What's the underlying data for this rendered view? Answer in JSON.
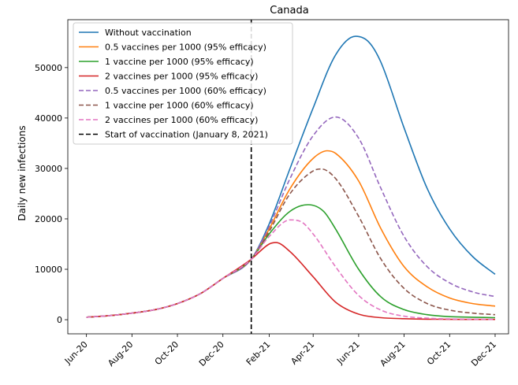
{
  "chart_data": {
    "type": "line",
    "title": "Canada",
    "xlabel": "",
    "ylabel": "Daily new infections",
    "x_tick_labels": [
      "Jun-20",
      "Aug-20",
      "Oct-20",
      "Dec-20",
      "Feb-21",
      "Apr-21",
      "Jun-21",
      "Aug-21",
      "Oct-21",
      "Dec-21"
    ],
    "x_tick_dates": [
      "2020-06-01",
      "2020-08-01",
      "2020-10-01",
      "2020-12-01",
      "2021-02-01",
      "2021-04-01",
      "2021-06-01",
      "2021-08-01",
      "2021-10-01",
      "2021-12-01"
    ],
    "y_ticks": [
      0,
      10000,
      20000,
      30000,
      40000,
      50000
    ],
    "y_tick_labels": [
      "0",
      "10000",
      "20000",
      "30000",
      "40000",
      "50000"
    ],
    "xlim": [
      "2020-05-07",
      "2021-12-19"
    ],
    "ylim": [
      -2800,
      59500
    ],
    "grid": false,
    "legend_position": "top-left",
    "vaccination_start": {
      "date": "2021-01-08",
      "label": "Start of vaccination (January 8, 2021)",
      "color": "#000000",
      "dash": "dashed"
    },
    "series": [
      {
        "name": "Without vaccination",
        "color": "#1f77b4",
        "dash": "solid",
        "points": [
          [
            "2020-06-01",
            500
          ],
          [
            "2020-07-01",
            800
          ],
          [
            "2020-08-01",
            1300
          ],
          [
            "2020-09-01",
            2000
          ],
          [
            "2020-10-01",
            3200
          ],
          [
            "2020-11-01",
            5200
          ],
          [
            "2020-12-01",
            8200
          ],
          [
            "2021-01-08",
            12000
          ],
          [
            "2021-02-01",
            19000
          ],
          [
            "2021-03-01",
            30000
          ],
          [
            "2021-04-01",
            42000
          ],
          [
            "2021-05-01",
            52500
          ],
          [
            "2021-05-28",
            56200
          ],
          [
            "2021-06-15",
            55000
          ],
          [
            "2021-07-01",
            51000
          ],
          [
            "2021-08-01",
            38000
          ],
          [
            "2021-09-01",
            26000
          ],
          [
            "2021-10-01",
            18000
          ],
          [
            "2021-11-01",
            12500
          ],
          [
            "2021-12-01",
            9000
          ]
        ]
      },
      {
        "name": "0.5 vaccines per 1000 (95% efficacy)",
        "color": "#ff7f0e",
        "dash": "solid",
        "points": [
          [
            "2020-06-01",
            500
          ],
          [
            "2020-07-01",
            800
          ],
          [
            "2020-08-01",
            1300
          ],
          [
            "2020-09-01",
            2000
          ],
          [
            "2020-10-01",
            3200
          ],
          [
            "2020-11-01",
            5200
          ],
          [
            "2020-12-01",
            8200
          ],
          [
            "2021-01-08",
            12000
          ],
          [
            "2021-02-01",
            18000
          ],
          [
            "2021-03-01",
            26000
          ],
          [
            "2021-04-01",
            32000
          ],
          [
            "2021-04-20",
            33500
          ],
          [
            "2021-05-01",
            33000
          ],
          [
            "2021-06-01",
            27500
          ],
          [
            "2021-07-01",
            18000
          ],
          [
            "2021-08-01",
            10500
          ],
          [
            "2021-09-01",
            6500
          ],
          [
            "2021-10-01",
            4300
          ],
          [
            "2021-11-01",
            3200
          ],
          [
            "2021-12-01",
            2700
          ]
        ]
      },
      {
        "name": "1 vaccine per 1000 (95% efficacy)",
        "color": "#2ca02c",
        "dash": "solid",
        "points": [
          [
            "2020-06-01",
            500
          ],
          [
            "2020-07-01",
            800
          ],
          [
            "2020-08-01",
            1300
          ],
          [
            "2020-09-01",
            2000
          ],
          [
            "2020-10-01",
            3200
          ],
          [
            "2020-11-01",
            5200
          ],
          [
            "2020-12-01",
            8200
          ],
          [
            "2021-01-08",
            12000
          ],
          [
            "2021-02-01",
            17000
          ],
          [
            "2021-03-01",
            21500
          ],
          [
            "2021-03-25",
            22800
          ],
          [
            "2021-04-15",
            21500
          ],
          [
            "2021-05-01",
            18000
          ],
          [
            "2021-06-01",
            10000
          ],
          [
            "2021-07-01",
            4500
          ],
          [
            "2021-08-01",
            2000
          ],
          [
            "2021-09-01",
            1000
          ],
          [
            "2021-10-01",
            600
          ],
          [
            "2021-11-01",
            500
          ],
          [
            "2021-12-01",
            400
          ]
        ]
      },
      {
        "name": "2 vaccines per 1000 (95% efficacy)",
        "color": "#d62728",
        "dash": "solid",
        "points": [
          [
            "2020-06-01",
            500
          ],
          [
            "2020-07-01",
            800
          ],
          [
            "2020-08-01",
            1300
          ],
          [
            "2020-09-01",
            2000
          ],
          [
            "2020-10-01",
            3200
          ],
          [
            "2020-11-01",
            5200
          ],
          [
            "2020-12-01",
            8200
          ],
          [
            "2021-01-08",
            12000
          ],
          [
            "2021-02-01",
            15000
          ],
          [
            "2021-02-10",
            15300
          ],
          [
            "2021-03-01",
            13500
          ],
          [
            "2021-04-01",
            8500
          ],
          [
            "2021-05-01",
            3500
          ],
          [
            "2021-06-01",
            1100
          ],
          [
            "2021-07-01",
            400
          ],
          [
            "2021-08-01",
            200
          ],
          [
            "2021-09-01",
            100
          ],
          [
            "2021-10-01",
            80
          ],
          [
            "2021-11-01",
            60
          ],
          [
            "2021-12-01",
            50
          ]
        ]
      },
      {
        "name": "0.5 vaccines per 1000 (60% efficacy)",
        "color": "#9467bd",
        "dash": "dashed",
        "points": [
          [
            "2020-06-01",
            500
          ],
          [
            "2020-07-01",
            800
          ],
          [
            "2020-08-01",
            1300
          ],
          [
            "2020-09-01",
            2000
          ],
          [
            "2020-10-01",
            3200
          ],
          [
            "2020-11-01",
            5200
          ],
          [
            "2020-12-01",
            8200
          ],
          [
            "2021-01-08",
            12000
          ],
          [
            "2021-02-01",
            18500
          ],
          [
            "2021-03-01",
            28000
          ],
          [
            "2021-04-01",
            36500
          ],
          [
            "2021-05-01",
            40200
          ],
          [
            "2021-06-01",
            36000
          ],
          [
            "2021-07-01",
            26000
          ],
          [
            "2021-08-01",
            16500
          ],
          [
            "2021-09-01",
            10500
          ],
          [
            "2021-10-01",
            7300
          ],
          [
            "2021-11-01",
            5500
          ],
          [
            "2021-12-01",
            4600
          ]
        ]
      },
      {
        "name": "1 vaccine per 1000 (60% efficacy)",
        "color": "#8c564b",
        "dash": "dashed",
        "points": [
          [
            "2020-06-01",
            500
          ],
          [
            "2020-07-01",
            800
          ],
          [
            "2020-08-01",
            1300
          ],
          [
            "2020-09-01",
            2000
          ],
          [
            "2020-10-01",
            3200
          ],
          [
            "2020-11-01",
            5200
          ],
          [
            "2020-12-01",
            8200
          ],
          [
            "2021-01-08",
            12000
          ],
          [
            "2021-02-01",
            17500
          ],
          [
            "2021-03-01",
            25000
          ],
          [
            "2021-04-01",
            29500
          ],
          [
            "2021-04-12",
            29900
          ],
          [
            "2021-05-01",
            28000
          ],
          [
            "2021-06-01",
            20500
          ],
          [
            "2021-07-01",
            12000
          ],
          [
            "2021-08-01",
            6200
          ],
          [
            "2021-09-01",
            3200
          ],
          [
            "2021-10-01",
            1900
          ],
          [
            "2021-11-01",
            1300
          ],
          [
            "2021-12-01",
            1000
          ]
        ]
      },
      {
        "name": "2 vaccines per 1000 (60% efficacy)",
        "color": "#e377c2",
        "dash": "dashed",
        "points": [
          [
            "2020-06-01",
            500
          ],
          [
            "2020-07-01",
            800
          ],
          [
            "2020-08-01",
            1300
          ],
          [
            "2020-09-01",
            2000
          ],
          [
            "2020-10-01",
            3200
          ],
          [
            "2020-11-01",
            5200
          ],
          [
            "2020-12-01",
            8200
          ],
          [
            "2021-01-08",
            12000
          ],
          [
            "2021-02-01",
            16500
          ],
          [
            "2021-03-01",
            19800
          ],
          [
            "2021-03-15",
            19500
          ],
          [
            "2021-04-01",
            17000
          ],
          [
            "2021-05-01",
            10500
          ],
          [
            "2021-06-01",
            4800
          ],
          [
            "2021-07-01",
            1900
          ],
          [
            "2021-08-01",
            700
          ],
          [
            "2021-09-01",
            300
          ],
          [
            "2021-10-01",
            150
          ],
          [
            "2021-11-01",
            100
          ],
          [
            "2021-12-01",
            80
          ]
        ]
      }
    ]
  }
}
